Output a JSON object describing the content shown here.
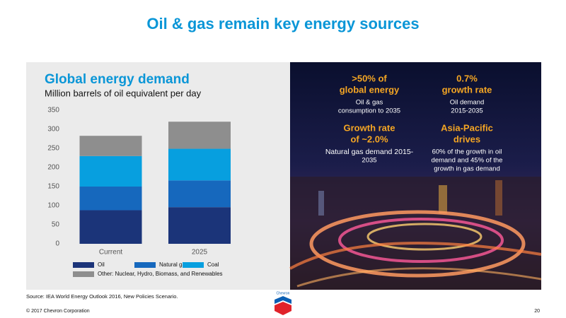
{
  "header": {
    "title": "Oil & gas remain key energy sources"
  },
  "chart_data": {
    "type": "stacked-bar",
    "title": "Global energy demand",
    "subtitle": "Million barrels of oil equivalent per day",
    "categories": [
      "Current",
      "2025"
    ],
    "series": [
      {
        "name": "Oil",
        "color": "#1b3479",
        "values": [
          88,
          96
        ]
      },
      {
        "name": "Natural gas",
        "color": "#1668bd",
        "values": [
          62,
          70
        ]
      },
      {
        "name": "Coal",
        "color": "#079fdf",
        "values": [
          80,
          83
        ]
      },
      {
        "name": "Other: Nuclear, Hydro, Biomass, and Renewables",
        "color": "#8e8e8e",
        "values": [
          53,
          71
        ]
      }
    ],
    "ylim": [
      0,
      350
    ],
    "yticks": [
      0,
      50,
      100,
      150,
      200,
      250,
      300,
      350
    ],
    "grid": false
  },
  "panel": {
    "items": [
      {
        "headline": [
          ">50% of",
          "global energy"
        ],
        "text": [
          "Oil & gas",
          "consumption to 2035"
        ]
      },
      {
        "headline": [
          "0.7%",
          "growth rate"
        ],
        "text": [
          "Oil demand",
          "2015-2035"
        ]
      },
      {
        "headline": [
          "Growth rate",
          "of ~2.0%"
        ],
        "text": [
          "Natural gas demand 2015-",
          "2035"
        ]
      },
      {
        "headline": [
          "Asia-Pacific",
          "drives"
        ],
        "text": [
          "60% of the growth in oil",
          "demand and 45% of the",
          "growth in gas demand"
        ]
      }
    ]
  },
  "footer": {
    "source": "Source: IEA World Energy Outlook 2016, New Policies Scenario.",
    "logo": "Chevron",
    "copyright": "© 2017 Chevron Corporation",
    "page": "20"
  }
}
